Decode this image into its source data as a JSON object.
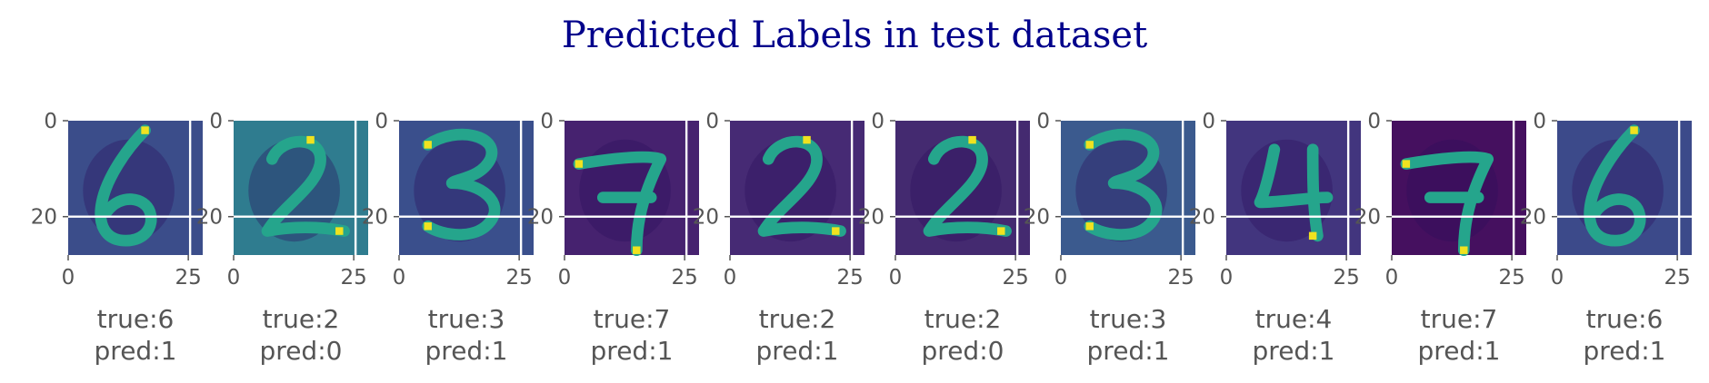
{
  "chart_data": {
    "type": "image-grid",
    "title": "Predicted Labels in test dataset",
    "image_size": [
      28,
      28
    ],
    "xticks": [
      0,
      25
    ],
    "yticks": [
      0,
      20
    ],
    "grid": true,
    "colormap": "viridis",
    "panels": [
      {
        "true_label": "true:6",
        "pred_label": "pred:1",
        "digit": 6,
        "bg": "#3b4d8a"
      },
      {
        "true_label": "true:2",
        "pred_label": "pred:0",
        "digit": 2,
        "bg": "#2f7c8f"
      },
      {
        "true_label": "true:3",
        "pred_label": "pred:1",
        "digit": 3,
        "bg": "#3a4f8c"
      },
      {
        "true_label": "true:7",
        "pred_label": "pred:1",
        "digit": 7,
        "bg": "#46226f"
      },
      {
        "true_label": "true:2",
        "pred_label": "pred:1",
        "digit": 2,
        "bg": "#462a74"
      },
      {
        "true_label": "true:2",
        "pred_label": "pred:0",
        "digit": 2,
        "bg": "#442a70"
      },
      {
        "true_label": "true:3",
        "pred_label": "pred:1",
        "digit": 3,
        "bg": "#3b5a8e"
      },
      {
        "true_label": "true:4",
        "pred_label": "pred:1",
        "digit": 4,
        "bg": "#42357e"
      },
      {
        "true_label": "true:7",
        "pred_label": "pred:1",
        "digit": 7,
        "bg": "#45105f"
      },
      {
        "true_label": "true:6",
        "pred_label": "pred:1",
        "digit": 6,
        "bg": "#3c4a8a"
      }
    ]
  }
}
